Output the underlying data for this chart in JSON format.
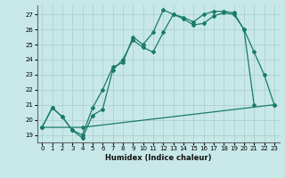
{
  "xlabel": "Humidex (Indice chaleur)",
  "bg_color": "#c8e8e8",
  "line_color": "#1a7a6a",
  "grid_color": "#a8cccc",
  "xlim": [
    -0.5,
    23.5
  ],
  "ylim": [
    18.5,
    27.6
  ],
  "xticks": [
    0,
    1,
    2,
    3,
    4,
    5,
    6,
    7,
    8,
    9,
    10,
    11,
    12,
    13,
    14,
    15,
    16,
    17,
    18,
    19,
    20,
    21,
    22,
    23
  ],
  "yticks": [
    19,
    20,
    21,
    22,
    23,
    24,
    25,
    26,
    27
  ],
  "line_top": {
    "x": [
      0,
      1,
      2,
      3,
      4,
      5,
      6,
      7,
      8,
      9,
      10,
      11,
      12,
      13,
      14,
      15,
      16,
      17,
      18,
      19,
      20,
      21,
      22,
      23
    ],
    "y": [
      19.5,
      20.8,
      20.2,
      19.3,
      19.0,
      20.8,
      22.0,
      23.5,
      23.8,
      25.5,
      25.0,
      25.8,
      27.3,
      27.0,
      26.8,
      26.5,
      27.0,
      27.2,
      27.2,
      27.1,
      26.0,
      24.5,
      23.0,
      21.0
    ]
  },
  "line_mid": {
    "x": [
      0,
      1,
      2,
      3,
      4,
      5,
      6,
      7,
      8,
      9,
      10,
      11,
      12,
      13,
      14,
      15,
      16,
      17,
      18,
      19,
      20,
      21
    ],
    "y": [
      19.5,
      20.8,
      20.2,
      19.3,
      18.8,
      20.3,
      20.7,
      23.3,
      24.0,
      25.3,
      24.8,
      24.5,
      25.8,
      27.0,
      26.7,
      26.3,
      26.4,
      26.9,
      27.1,
      27.0,
      26.0,
      21.0
    ]
  },
  "line_bot": {
    "x": [
      0,
      4,
      23
    ],
    "y": [
      19.5,
      19.5,
      21.0
    ]
  }
}
